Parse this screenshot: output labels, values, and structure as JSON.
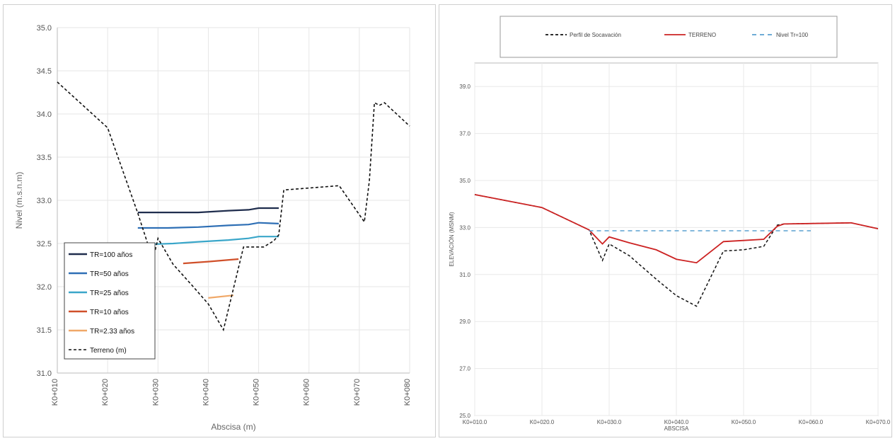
{
  "chart_data": [
    {
      "type": "line",
      "xlabel": "Abscisa (m)",
      "ylabel": "Nivel (m.s.n.m)",
      "ylim": [
        31.0,
        35.0
      ],
      "yticks": [
        "31.0",
        "31.5",
        "32.0",
        "32.5",
        "33.0",
        "33.5",
        "34.0",
        "34.5",
        "35.0"
      ],
      "xlim": [
        10,
        80
      ],
      "xtick_values": [
        10,
        20,
        30,
        40,
        50,
        60,
        70,
        80
      ],
      "xticks": [
        "K0+010",
        "K0+020",
        "K0+030",
        "K0+040",
        "K0+050",
        "K0+060",
        "K0+070",
        "K0+080"
      ],
      "grid": true,
      "legend_position": "bottom-left",
      "series": [
        {
          "name": "TR=100 años",
          "color": "#1f2d4d",
          "dash": "",
          "x": [
            26,
            32,
            38,
            44,
            48,
            50,
            54
          ],
          "y": [
            32.86,
            32.86,
            32.86,
            32.88,
            32.89,
            32.91,
            32.91
          ]
        },
        {
          "name": "TR=50 años",
          "color": "#2e6fb5",
          "dash": "",
          "x": [
            26,
            32,
            38,
            44,
            48,
            50,
            54
          ],
          "y": [
            32.68,
            32.68,
            32.69,
            32.71,
            32.72,
            32.74,
            32.73
          ]
        },
        {
          "name": "TR=25 años",
          "color": "#3aa6c9",
          "dash": "",
          "x": [
            28,
            33,
            38,
            44,
            48,
            50,
            54
          ],
          "y": [
            32.49,
            32.5,
            32.52,
            32.54,
            32.56,
            32.58,
            32.58
          ]
        },
        {
          "name": "TR=10 años",
          "color": "#d0502a",
          "dash": "",
          "x": [
            35,
            40,
            46
          ],
          "y": [
            32.27,
            32.29,
            32.32
          ]
        },
        {
          "name": "TR=2.33 años",
          "color": "#f0a868",
          "dash": "",
          "x": [
            40,
            45
          ],
          "y": [
            31.87,
            31.9
          ]
        },
        {
          "name": "Terreno (m)",
          "color": "#111111",
          "dash": "4,3",
          "x": [
            10,
            20,
            26,
            29,
            30,
            33,
            37,
            40,
            43,
            47,
            51,
            53,
            54,
            55,
            66,
            71,
            72,
            73,
            74,
            75,
            80
          ],
          "y": [
            34.37,
            33.84,
            32.85,
            32.31,
            32.56,
            32.26,
            32.0,
            31.8,
            31.5,
            32.46,
            32.46,
            32.53,
            32.6,
            33.12,
            33.17,
            32.75,
            33.23,
            34.13,
            34.1,
            34.13,
            33.86
          ]
        }
      ]
    },
    {
      "type": "line",
      "xlabel": "ABSCISA",
      "ylabel": "ELEVACIÓN (MSNM)",
      "ylim": [
        25.0,
        40.0
      ],
      "yticks": [
        "25.0",
        "27.0",
        "29.0",
        "31.0",
        "33.0",
        "35.0",
        "37.0",
        "39.0"
      ],
      "ytick_values": [
        25,
        27,
        29,
        31,
        33,
        35,
        37,
        39
      ],
      "xlim": [
        10,
        70
      ],
      "xtick_values": [
        10,
        20,
        30,
        40,
        50,
        60,
        70
      ],
      "xticks": [
        "K0+010.0",
        "K0+020.0",
        "K0+030.0",
        "K0+040.0",
        "K0+050.0",
        "K0+060.0",
        "K0+070.0"
      ],
      "grid": true,
      "legend_position": "top",
      "series": [
        {
          "name": "Perfil de Socavación",
          "color": "#111111",
          "dash": "4,3",
          "x": [
            10,
            20,
            27,
            29,
            30,
            33,
            37,
            40,
            43,
            47,
            50,
            53,
            55,
            56,
            66,
            70
          ],
          "y": [
            34.4,
            33.85,
            32.9,
            31.6,
            32.3,
            31.8,
            30.8,
            30.1,
            29.65,
            32.0,
            32.05,
            32.2,
            33.1,
            33.15,
            33.2,
            32.95
          ]
        },
        {
          "name": "TERRENO",
          "color": "#cc2222",
          "dash": "",
          "x": [
            10,
            20,
            27,
            29,
            30,
            33,
            37,
            40,
            43,
            47,
            50,
            53,
            55,
            56,
            66,
            70
          ],
          "y": [
            34.4,
            33.85,
            32.9,
            32.3,
            32.6,
            32.35,
            32.05,
            31.65,
            31.5,
            32.4,
            32.45,
            32.5,
            33.05,
            33.15,
            33.2,
            32.95
          ]
        },
        {
          "name": "Nivel Tr=100",
          "color": "#5aa0d0",
          "dash": "6,5",
          "x": [
            27,
            60
          ],
          "y": [
            32.86,
            32.86
          ]
        }
      ]
    }
  ]
}
